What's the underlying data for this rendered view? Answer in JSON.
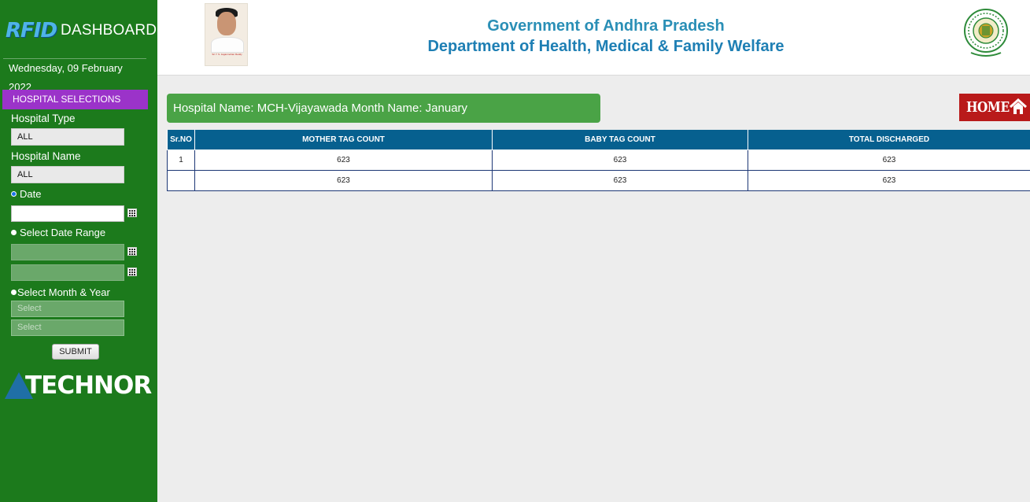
{
  "sidebar": {
    "logo_text": "RFID",
    "brand_title": "DASHBOARD",
    "date": "Wednesday, 09 February 2022",
    "section_header": "HOSPITAL SELECTIONS",
    "hospital_type_label": "Hospital Type",
    "hospital_type_value": "ALL",
    "hospital_name_label": "Hospital Name",
    "hospital_name_value": "ALL",
    "date_option_label": "Date",
    "date_range_label": "Select Date Range",
    "month_year_label": "Select Month & Year",
    "month_placeholder": "Select",
    "year_placeholder": "Select",
    "submit_label": "SUBMIT",
    "company_logo_text": "TECHNOR"
  },
  "header": {
    "title": "Government of Andhra Pradesh",
    "department": "Department of Health, Medical & Family Welfare",
    "photo_caption": "Sri Y. S. Jaganmohan Reddy"
  },
  "main": {
    "info_bar": "Hospital Name: MCH-Vijayawada Month Name: January",
    "home_label": "HOME",
    "table": {
      "headers": [
        "Sr.NO",
        "MOTHER TAG COUNT",
        "BABY TAG COUNT",
        "TOTAL DISCHARGED"
      ],
      "rows": [
        [
          "1",
          "623",
          "623",
          "623"
        ],
        [
          "",
          "623",
          "623",
          "623"
        ]
      ]
    }
  },
  "colors": {
    "sidebar_bg": "#1c7a1c",
    "section_header_bg": "#9b33c9",
    "info_bar_bg": "#4aa346",
    "table_header_bg": "#06608f",
    "home_bg": "#b91a1a",
    "title_color": "#1e7fb4"
  }
}
